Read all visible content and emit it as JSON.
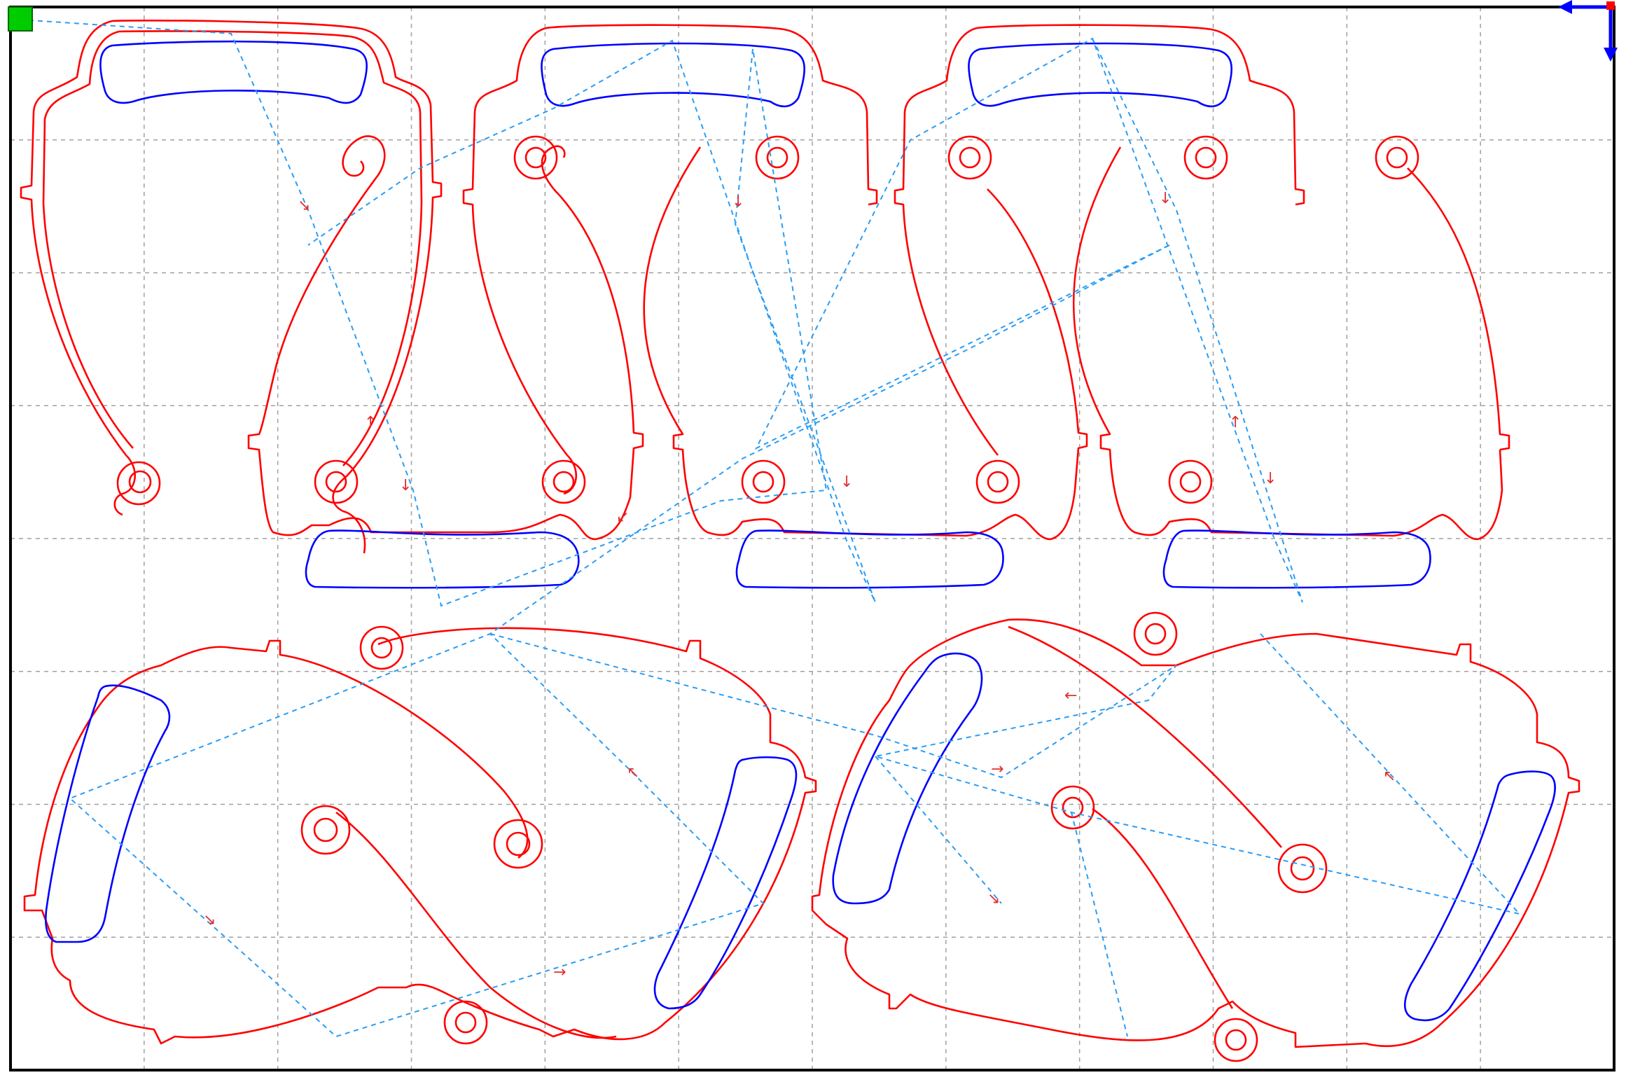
{
  "view": {
    "name": "laser-cut-nesting-preview",
    "grid": true,
    "grid_columns": 12,
    "grid_rows": 8
  },
  "colors": {
    "background": "#ffffff",
    "border": "#000000",
    "grid": "#a0a0a0",
    "outer_cut": "#ff0000",
    "inner_cut": "#0000ff",
    "travel_path": "#2a9df4",
    "start_marker": "#00cc00",
    "axis_arrow": "#0000ff",
    "origin_dot": "#ff0000"
  },
  "icons": {
    "start_marker": "green-square-start-icon",
    "axis_origin": "xy-axis-arrows-icon"
  },
  "parts": {
    "top_row_count": 3,
    "bottom_row_count": 2,
    "top_row": [
      "part-arc-frame-1",
      "part-arc-frame-2",
      "part-arc-frame-3"
    ],
    "bottom_row": [
      "part-oval-frame-1",
      "part-oval-frame-2"
    ]
  }
}
